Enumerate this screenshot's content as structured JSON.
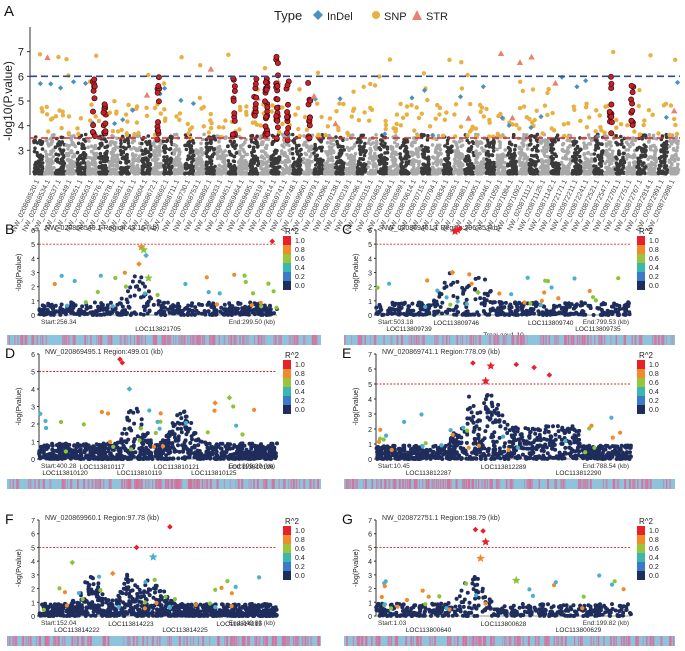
{
  "figure": {
    "type_label": "Type",
    "legend": [
      {
        "name": "InDel",
        "color": "#4a90c2",
        "shape": "diamond"
      },
      {
        "name": "SNP",
        "color": "#e8b040",
        "shape": "circle"
      },
      {
        "name": "STR",
        "color": "#e8826e",
        "shape": "triangle"
      }
    ],
    "colors": {
      "dark": "#3a3a3a",
      "light": "#a8a8a8",
      "red_line": "#d42a2a",
      "blue_line": "#2a4a8a",
      "highlight": "#c8202a",
      "lz_dot": "#1f2d5c",
      "heat_blue": "#8ec3dc",
      "heat_pink": "#d8709a"
    }
  },
  "chart_data": [
    {
      "panel": "A",
      "type": "scatter",
      "title": "",
      "ylabel": "-log10(P.value)",
      "ylim": [
        2,
        8
      ],
      "yticks": [
        "3",
        "4",
        "5",
        "6",
        "7"
      ],
      "threshold_low": 3.5,
      "threshold_high": 6,
      "categories": [
        "NW_020868520.1",
        "NW_020868534.1",
        "NW_020868537.1",
        "NW_020868549.1",
        "NW_020868551.1",
        "NW_020868563.1",
        "NW_020868576.1",
        "NW_020868578.1",
        "NW_020868581.1",
        "NW_020868591.1",
        "NW_020868604.1",
        "NW_020868672.1",
        "NW_020868692.1",
        "NW_020868711.1",
        "NW_020868730.1",
        "NW_020868753.1",
        "NW_020868892.1",
        "NW_020868933.1",
        "NW_020869451.1",
        "NW_020869464.1",
        "NW_020869495.1",
        "NW_020869519.1",
        "NW_020869614.1",
        "NW_020869741.1",
        "NW_020869748.1",
        "NW_020869960.1",
        "NW_020869979.1",
        "NW_020870096.1",
        "NW_020870138.1",
        "NW_020870219.1",
        "NW_020870296.1",
        "NW_020870315.1",
        "NW_020870483.1",
        "NW_020870584.1",
        "NW_020870599.1",
        "NW_020870614.1",
        "NW_020870715.1",
        "NW_020870794.1",
        "NW_020870834.1",
        "NW_020870855.1",
        "NW_020870881.1",
        "NW_020870905.1",
        "NW_020870946.1",
        "NW_020871059.1",
        "NW_020871084.1",
        "NW_020871092.1",
        "NW_020871112.1",
        "NW_020871125.1",
        "NW_020871142.1",
        "NW_020872171.1",
        "NW_020872211.1",
        "NW_020872241.1",
        "NW_020872521.1",
        "NW_020872547.1",
        "NW_020872701.1",
        "NW_020872751.1",
        "NW_020872767.1",
        "NW_020872914.1",
        "NW_020872991.1",
        "NW_020872998.1"
      ]
    },
    {
      "panel": "B",
      "type": "scatter",
      "title": "NW_020868549.1 Region:43.16 (kb)",
      "ylabel": "-log(Pvalue)",
      "ylim": [
        0,
        6
      ],
      "yticks": [
        "0",
        "1",
        "2",
        "3",
        "4",
        "5",
        "6"
      ],
      "threshold": 5,
      "start": "Start:256.34",
      "end": "End:299.50 (kb)",
      "genes": [
        "LOC113821705"
      ],
      "legend_title": "R^2",
      "legend": [
        "1.0",
        "0.8",
        "0.6",
        "0.4",
        "0.2",
        "0.0"
      ]
    },
    {
      "panel": "C",
      "type": "scatter",
      "title": "NW_020869451.1 Region:296.35 (kb)",
      "ylabel": "-log(Pvalue)",
      "ylim": [
        0,
        6
      ],
      "yticks": [
        "0",
        "1",
        "2",
        "3",
        "4",
        "5",
        "6"
      ],
      "threshold": 5,
      "start": "Start:503.18",
      "end": "End:799.53 (kb)",
      "genes": [
        "LOC113809739",
        "LOC113809746",
        "Trnai-aau1-10",
        "LOC113809740",
        "LOC113809735"
      ],
      "legend_title": "R^2",
      "legend": [
        "1.0",
        "0.8",
        "0.6",
        "0.4",
        "0.2",
        "0.0"
      ]
    },
    {
      "panel": "D",
      "type": "scatter",
      "title": "NW_020869495.1 Region:499.01 (kb)",
      "ylabel": "-log(Pvalue)",
      "ylim": [
        0,
        6
      ],
      "yticks": [
        "0",
        "1",
        "2",
        "3",
        "4",
        "5",
        "6"
      ],
      "threshold": 5,
      "start": "Start:400.28",
      "end": "End:899.29 (kb)",
      "genes": [
        "LOC113810120",
        "LOC113810117",
        "LOC113810119",
        "LOC113810121",
        "LOC113810125",
        "LOC113810126"
      ],
      "legend_title": "R^2",
      "legend": [
        "1.0",
        "0.8",
        "0.6",
        "0.4",
        "0.2",
        "0.0"
      ]
    },
    {
      "panel": "E",
      "type": "scatter",
      "title": "NW_020869741.1 Region:778.09 (kb)",
      "ylabel": "-log(Pvalue)",
      "ylim": [
        0,
        7
      ],
      "yticks": [
        "0",
        "1",
        "2",
        "3",
        "4",
        "5",
        "6",
        "7"
      ],
      "threshold": 5,
      "start": "Start:10.45",
      "end": "End:788.54 (kb)",
      "genes": [
        "LOC113812287",
        "LOC113812289",
        "LOC113812290"
      ],
      "legend_title": "R^2",
      "legend": [
        "1.0",
        "0.8",
        "0.6",
        "0.4",
        "0.2",
        "0.0"
      ]
    },
    {
      "panel": "F",
      "type": "scatter",
      "title": "NW_020869960.1 Region:97.78 (kb)",
      "ylabel": "-log(Pvalue)",
      "ylim": [
        0,
        7
      ],
      "yticks": [
        "0",
        "1",
        "2",
        "3",
        "4",
        "5",
        "6",
        "7"
      ],
      "threshold": 5,
      "start": "Start:152.04",
      "end": "End:249.83 (kb)",
      "genes": [
        "LOC113814222",
        "LOC113814223",
        "LOC113814225",
        "LOC113814215"
      ],
      "legend_title": "R^2",
      "legend": [
        "1.0",
        "0.8",
        "0.6",
        "0.4",
        "0.2",
        "0.0"
      ]
    },
    {
      "panel": "G",
      "type": "scatter",
      "title": "NW_020872751.1 Region:198.79 (kb)",
      "ylabel": "-log(Pvalue)",
      "ylim": [
        0,
        7
      ],
      "yticks": [
        "0",
        "1",
        "2",
        "3",
        "4",
        "5",
        "6",
        "7"
      ],
      "threshold": 5,
      "start": "Start:1.03",
      "end": "End:199.82 (kb)",
      "genes": [
        "LOC113800640",
        "LOC113800628",
        "LOC113800629"
      ],
      "legend_title": "R^2",
      "legend": [
        "1.0",
        "0.8",
        "0.6",
        "0.4",
        "0.2",
        "0.0"
      ]
    }
  ]
}
